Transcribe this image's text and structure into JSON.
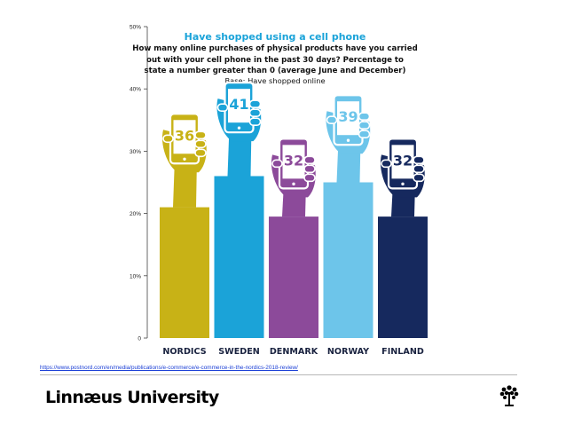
{
  "chart_data": {
    "type": "bar",
    "title": "Have shopped using a cell phone",
    "subtitle_lines": [
      "How many online purchases of physical products have you carried",
      "out with your cell phone in the past 30 days? Percentage to",
      "state a number greater than 0 (average June and December)"
    ],
    "base": "Base: Have shopped online",
    "categories": [
      "NORDICS",
      "SWEDEN",
      "DENMARK",
      "NORWAY",
      "FINLAND"
    ],
    "values": [
      36,
      41,
      32,
      39,
      32
    ],
    "bar_fill_values": [
      21,
      26,
      19.5,
      25,
      19.5
    ],
    "yticks": [
      "0",
      "10%",
      "20%",
      "30%",
      "40%",
      "50%"
    ],
    "ylim": [
      0,
      50
    ],
    "grid": false,
    "colors": [
      "#c8b216",
      "#1ba3d8",
      "#8c4a9a",
      "#6dc5ea",
      "#16295e"
    ]
  },
  "footer": {
    "source_url": "https://www.postnord.com/en/media/publications/e-commerce/e-commerce-in-the-nordics-2018-review/",
    "brand": "Linnæus University",
    "logo_icon": "tree-icon"
  }
}
